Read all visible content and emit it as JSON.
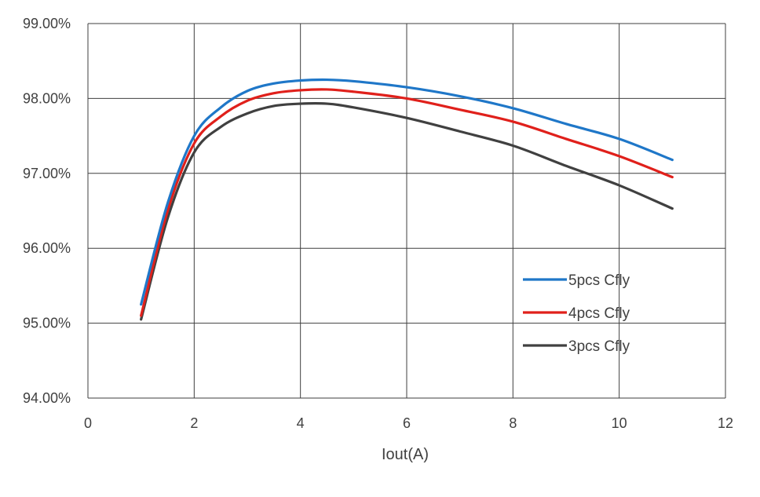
{
  "chart_data": {
    "type": "line",
    "title": "",
    "xlabel": "Iout(A)",
    "ylabel": "",
    "xlim": [
      0,
      12
    ],
    "ylim": [
      94.0,
      99.0
    ],
    "x_ticks": [
      "0",
      "2",
      "4",
      "6",
      "8",
      "10",
      "12"
    ],
    "y_ticks": [
      "94.00%",
      "95.00%",
      "96.00%",
      "97.00%",
      "98.00%",
      "99.00%"
    ],
    "grid": true,
    "legend_position": "right",
    "series": [
      {
        "name": "5pcs Cfly",
        "color": "#1f77c8",
        "x": [
          1.0,
          1.5,
          2.0,
          2.5,
          3.0,
          3.5,
          4.0,
          4.5,
          5.0,
          6.0,
          7.0,
          8.0,
          9.0,
          10.0,
          11.0
        ],
        "y": [
          95.25,
          96.6,
          97.5,
          97.88,
          98.1,
          98.2,
          98.24,
          98.25,
          98.23,
          98.15,
          98.03,
          97.87,
          97.66,
          97.46,
          97.18
        ]
      },
      {
        "name": "4pcs Cfly",
        "color": "#e0201b",
        "x": [
          1.0,
          1.5,
          2.0,
          2.5,
          3.0,
          3.5,
          4.0,
          4.5,
          5.0,
          6.0,
          7.0,
          8.0,
          9.0,
          10.0,
          11.0
        ],
        "y": [
          95.1,
          96.5,
          97.4,
          97.76,
          97.97,
          98.07,
          98.11,
          98.12,
          98.09,
          98.0,
          97.85,
          97.69,
          97.46,
          97.23,
          96.95
        ]
      },
      {
        "name": "3pcs Cfly",
        "color": "#404040",
        "x": [
          1.0,
          1.5,
          2.0,
          2.5,
          3.0,
          3.5,
          4.0,
          4.5,
          5.0,
          6.0,
          7.0,
          8.0,
          9.0,
          10.0,
          11.0
        ],
        "y": [
          95.05,
          96.4,
          97.28,
          97.62,
          97.8,
          97.9,
          97.93,
          97.93,
          97.88,
          97.74,
          97.56,
          97.37,
          97.1,
          96.84,
          96.53
        ]
      }
    ]
  }
}
